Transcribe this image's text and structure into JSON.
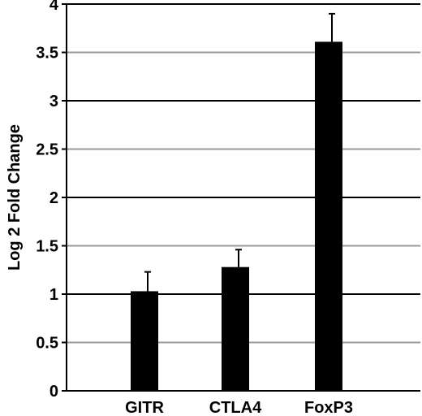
{
  "chart_data": {
    "type": "bar",
    "title": "",
    "xlabel": "",
    "ylabel": "Log 2 Fold Change",
    "ylim": [
      0,
      4
    ],
    "yticks": [
      "0",
      "0.5",
      "1",
      "1.5",
      "2",
      "2.5",
      "3",
      "3.5",
      "4"
    ],
    "grid": true,
    "categories": [
      "GITR",
      "CTLA4",
      "FoxP3"
    ],
    "values": [
      1.03,
      1.28,
      3.61
    ],
    "errors": [
      0.2,
      0.18,
      0.29
    ],
    "colors": {
      "bar": "#000000",
      "grid": "#000000",
      "grid_alt": "#9a9a9a",
      "axis": "#000000"
    }
  }
}
